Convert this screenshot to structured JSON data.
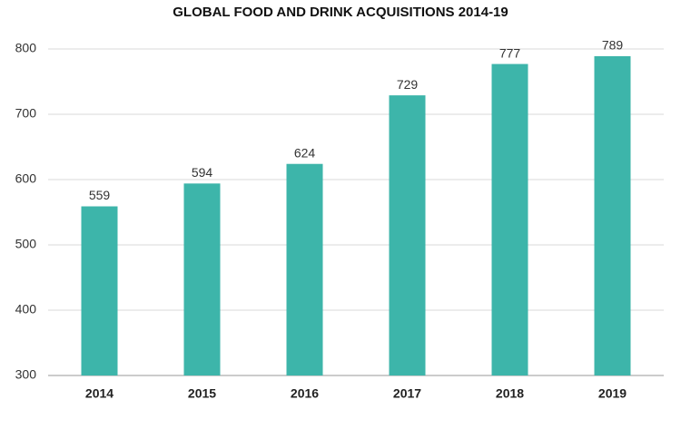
{
  "chart_data": {
    "type": "bar",
    "title": "GLOBAL FOOD AND DRINK ACQUISITIONS 2014-19",
    "categories": [
      "2014",
      "2015",
      "2016",
      "2017",
      "2018",
      "2019"
    ],
    "values": [
      559,
      594,
      624,
      729,
      777,
      789
    ],
    "color": "#3db5aa",
    "ylim": [
      300,
      800
    ],
    "yticks": [
      300,
      400,
      500,
      600,
      700,
      800
    ],
    "grid": true
  }
}
